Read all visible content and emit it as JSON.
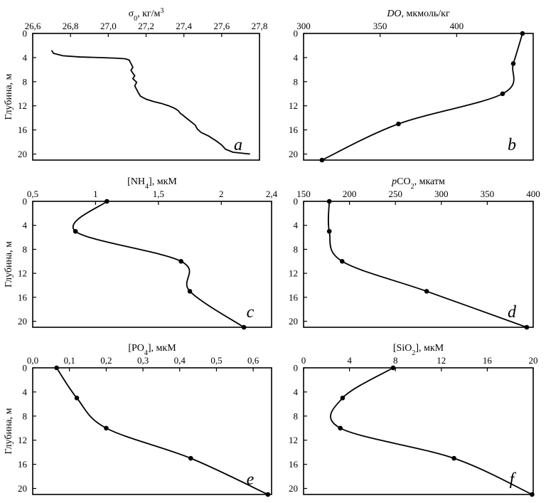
{
  "chart_data": [
    {
      "panel": "a",
      "type": "line",
      "top_title_html": "σ<tspan baseline-shift='sub' font-size='10'>0</tspan>, кг/м<tspan baseline-shift='super' font-size='10'>3</tspan>",
      "top_title_parts": [
        {
          "t": "σ"
        },
        {
          "t": "0",
          "sub": true
        },
        {
          "t": ", кг/м"
        },
        {
          "t": "3",
          "sup": true
        }
      ],
      "ylabel": "Глубина, м",
      "letter": "a",
      "xlim": [
        26.6,
        27.8
      ],
      "xticks": [
        26.6,
        26.8,
        27.0,
        27.2,
        27.4,
        27.6,
        27.8
      ],
      "xtick_labels": [
        "26,6",
        "26,8",
        "27,0",
        "27,2",
        "27,4",
        "27,6",
        "27,8"
      ],
      "ylim": [
        0,
        21
      ],
      "yticks": [
        0,
        4,
        8,
        12,
        16,
        20
      ],
      "ytick_labels": [
        "0",
        "4",
        "8",
        "12",
        "16",
        "20"
      ],
      "markers": false,
      "x": [
        26.7,
        26.71,
        26.76,
        26.85,
        26.95,
        27.04,
        27.09,
        27.11,
        27.12,
        27.13,
        27.12,
        27.13,
        27.14,
        27.13,
        27.15,
        27.14,
        27.15,
        27.16,
        27.17,
        27.2,
        27.24,
        27.28,
        27.32,
        27.35,
        27.37,
        27.38,
        27.4,
        27.42,
        27.44,
        27.46,
        27.47,
        27.49,
        27.53,
        27.57,
        27.6,
        27.62,
        27.66,
        27.75
      ],
      "y": [
        2.8,
        3.3,
        3.7,
        3.9,
        4.0,
        4.1,
        4.2,
        4.4,
        5.0,
        5.6,
        6.1,
        6.6,
        7.0,
        7.5,
        8.1,
        8.7,
        9.3,
        9.9,
        10.4,
        10.9,
        11.3,
        11.6,
        12.0,
        12.4,
        12.8,
        13.2,
        13.7,
        14.2,
        14.7,
        15.2,
        15.8,
        16.4,
        17.0,
        17.8,
        18.5,
        19.2,
        19.7,
        20.0
      ]
    },
    {
      "panel": "b",
      "type": "line",
      "top_title_parts": [
        {
          "t": "DO",
          "italic": true
        },
        {
          "t": ", мкмоль/кг"
        }
      ],
      "ylabel": "",
      "letter": "b",
      "xlim": [
        300,
        450
      ],
      "xticks": [
        300,
        350,
        400
      ],
      "xtick_labels": [
        "300",
        "350",
        "400"
      ],
      "ylim": [
        0,
        21
      ],
      "yticks": [
        0,
        4,
        8,
        12,
        16,
        20
      ],
      "ytick_labels": [
        "0",
        "4",
        "8",
        "12",
        "16",
        "20"
      ],
      "markers": true,
      "x": [
        443,
        437,
        430,
        362,
        312
      ],
      "y": [
        0,
        5,
        10,
        15,
        21
      ],
      "smooth": true
    },
    {
      "panel": "c",
      "type": "line",
      "top_title_parts": [
        {
          "t": "[NH"
        },
        {
          "t": "4",
          "sub": true
        },
        {
          "t": "], мкМ"
        }
      ],
      "ylabel": "Глубина, м",
      "letter": "c",
      "xlim": [
        0.5,
        2.4
      ],
      "xticks": [
        0.5,
        1.0,
        1.5,
        2.0,
        2.4
      ],
      "xtick_labels": [
        "0,5",
        "1",
        "1,5",
        "2",
        "2,4"
      ],
      "ylim": [
        0,
        21
      ],
      "yticks": [
        0,
        4,
        8,
        12,
        16,
        20
      ],
      "ytick_labels": [
        "0",
        "4",
        "8",
        "12",
        "16",
        "20"
      ],
      "markers": true,
      "x": [
        1.09,
        0.84,
        1.68,
        1.75,
        2.18
      ],
      "y": [
        0,
        5,
        10,
        15,
        21
      ],
      "smooth": true
    },
    {
      "panel": "d",
      "type": "line",
      "top_title_parts": [
        {
          "t": "p",
          "italic": true
        },
        {
          "t": "CO"
        },
        {
          "t": "2",
          "sub": true
        },
        {
          "t": ", мкатм"
        }
      ],
      "ylabel": "",
      "letter": "d",
      "xlim": [
        150,
        400
      ],
      "xticks": [
        150,
        200,
        250,
        300,
        350,
        400
      ],
      "xtick_labels": [
        "150",
        "200",
        "250",
        "300",
        "350",
        "400"
      ],
      "ylim": [
        0,
        21
      ],
      "yticks": [
        0,
        4,
        8,
        12,
        16,
        20
      ],
      "ytick_labels": [
        "0",
        "4",
        "8",
        "12",
        "16",
        "20"
      ],
      "markers": true,
      "x": [
        178,
        178,
        192,
        284,
        393
      ],
      "y": [
        0,
        5,
        10,
        15,
        21
      ],
      "smooth": true
    },
    {
      "panel": "e",
      "type": "line",
      "top_title_parts": [
        {
          "t": "[PO"
        },
        {
          "t": "4",
          "sub": true
        },
        {
          "t": "], мкМ"
        }
      ],
      "ylabel": "Глубина, м",
      "letter": "e",
      "xlim": [
        0.0,
        0.65
      ],
      "xticks": [
        0.0,
        0.1,
        0.2,
        0.3,
        0.4,
        0.5,
        0.6
      ],
      "xtick_labels": [
        "0,0",
        "0,1",
        "0,2",
        "0,3",
        "0,4",
        "0,5",
        "0,6"
      ],
      "ylim": [
        0,
        21
      ],
      "yticks": [
        0,
        4,
        8,
        12,
        16,
        20
      ],
      "ytick_labels": [
        "0",
        "4",
        "8",
        "12",
        "16",
        "20"
      ],
      "markers": true,
      "x": [
        0.065,
        0.12,
        0.2,
        0.43,
        0.64
      ],
      "y": [
        0,
        5,
        10,
        15,
        21
      ],
      "smooth": true
    },
    {
      "panel": "f",
      "type": "line",
      "top_title_parts": [
        {
          "t": "[SiO"
        },
        {
          "t": "2",
          "sub": true
        },
        {
          "t": "], мкМ"
        }
      ],
      "ylabel": "",
      "letter": "f",
      "xlim": [
        0,
        20
      ],
      "xticks": [
        0,
        4,
        8,
        12,
        16,
        20
      ],
      "xtick_labels": [
        "0",
        "4",
        "8",
        "12",
        "16",
        "20"
      ],
      "ylim": [
        0,
        21
      ],
      "yticks": [
        0,
        4,
        8,
        12,
        16,
        20
      ],
      "ytick_labels": [
        "0",
        "4",
        "8",
        "12",
        "16",
        "20"
      ],
      "markers": true,
      "x": [
        7.8,
        3.4,
        3.2,
        13.1,
        19.9
      ],
      "y": [
        0,
        5,
        10,
        15,
        21
      ],
      "smooth": true
    }
  ]
}
